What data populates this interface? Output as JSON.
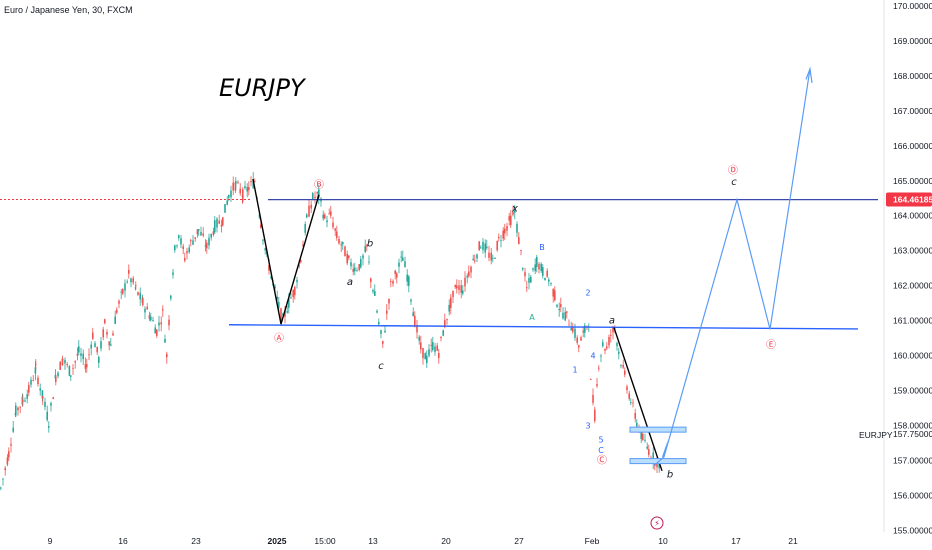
{
  "header": {
    "legend": "Euro / Japanese Yen, 30, FXCM"
  },
  "chart_data": {
    "type": "candlestick",
    "title": "EURJPY",
    "symbol_label": "EURJPY",
    "ylim": [
      155.0,
      170.0
    ],
    "y_ticks": [
      "155.00000",
      "156.00000",
      "157.00000",
      "158.00000",
      "159.00000",
      "160.00000",
      "161.00000",
      "162.00000",
      "163.00000",
      "164.00000",
      "165.00000",
      "166.00000",
      "167.00000",
      "168.00000",
      "169.00000",
      "170.00000"
    ],
    "x_ticks": [
      "9",
      "16",
      "23",
      "2025",
      "15:00",
      "13",
      "20",
      "27",
      "Feb",
      "10",
      "17",
      "21"
    ],
    "last_price": "164.46185",
    "extra_price_label": "157.75000",
    "price_path": [
      [
        0,
        156.2
      ],
      [
        8,
        157.2
      ],
      [
        15,
        158.4
      ],
      [
        22,
        158.7
      ],
      [
        28,
        159.0
      ],
      [
        35,
        159.6
      ],
      [
        42,
        158.8
      ],
      [
        48,
        158.1
      ],
      [
        55,
        159.4
      ],
      [
        62,
        159.9
      ],
      [
        70,
        159.5
      ],
      [
        78,
        160.1
      ],
      [
        86,
        159.7
      ],
      [
        92,
        160.6
      ],
      [
        98,
        159.9
      ],
      [
        104,
        160.9
      ],
      [
        110,
        160.3
      ],
      [
        116,
        161.3
      ],
      [
        122,
        161.8
      ],
      [
        128,
        162.3
      ],
      [
        135,
        161.9
      ],
      [
        142,
        161.5
      ],
      [
        150,
        161.1
      ],
      [
        156,
        160.7
      ],
      [
        162,
        161.2
      ],
      [
        166,
        160.0
      ],
      [
        170,
        161.8
      ],
      [
        174,
        163.0
      ],
      [
        178,
        163.5
      ],
      [
        184,
        162.8
      ],
      [
        190,
        163.2
      ],
      [
        198,
        163.6
      ],
      [
        206,
        163.1
      ],
      [
        214,
        163.7
      ],
      [
        222,
        163.9
      ],
      [
        228,
        164.6
      ],
      [
        235,
        164.9
      ],
      [
        242,
        164.6
      ],
      [
        248,
        164.8
      ],
      [
        254,
        165.0
      ],
      [
        260,
        163.8
      ],
      [
        266,
        162.8
      ],
      [
        272,
        162.1
      ],
      [
        278,
        161.4
      ],
      [
        282,
        161.0
      ],
      [
        288,
        161.5
      ],
      [
        294,
        161.9
      ],
      [
        300,
        162.8
      ],
      [
        306,
        163.9
      ],
      [
        312,
        164.5
      ],
      [
        318,
        164.6
      ],
      [
        324,
        163.9
      ],
      [
        330,
        164.0
      ],
      [
        336,
        163.4
      ],
      [
        342,
        163.1
      ],
      [
        348,
        162.7
      ],
      [
        354,
        162.5
      ],
      [
        360,
        162.6
      ],
      [
        366,
        163.1
      ],
      [
        370,
        162.2
      ],
      [
        374,
        161.7
      ],
      [
        378,
        160.9
      ],
      [
        382,
        160.3
      ],
      [
        386,
        161.2
      ],
      [
        390,
        162.0
      ],
      [
        396,
        162.4
      ],
      [
        402,
        162.8
      ],
      [
        408,
        162.1
      ],
      [
        414,
        161.0
      ],
      [
        420,
        160.2
      ],
      [
        426,
        159.9
      ],
      [
        432,
        160.3
      ],
      [
        438,
        160.1
      ],
      [
        444,
        160.9
      ],
      [
        450,
        161.5
      ],
      [
        456,
        162.0
      ],
      [
        462,
        161.9
      ],
      [
        468,
        162.4
      ],
      [
        474,
        162.8
      ],
      [
        480,
        163.2
      ],
      [
        486,
        163.0
      ],
      [
        492,
        162.7
      ],
      [
        498,
        163.3
      ],
      [
        504,
        163.6
      ],
      [
        510,
        163.9
      ],
      [
        514,
        164.1
      ],
      [
        518,
        163.3
      ],
      [
        522,
        162.6
      ],
      [
        526,
        161.9
      ],
      [
        530,
        162.2
      ],
      [
        536,
        162.7
      ],
      [
        542,
        162.4
      ],
      [
        548,
        162.2
      ],
      [
        554,
        161.7
      ],
      [
        560,
        161.3
      ],
      [
        566,
        161.1
      ],
      [
        572,
        160.8
      ],
      [
        578,
        160.3
      ],
      [
        584,
        160.7
      ],
      [
        588,
        161.0
      ],
      [
        590,
        159.2
      ],
      [
        594,
        158.3
      ],
      [
        598,
        159.8
      ],
      [
        602,
        160.3
      ],
      [
        606,
        160.2
      ],
      [
        610,
        160.6
      ],
      [
        614,
        160.8
      ],
      [
        618,
        160.1
      ],
      [
        624,
        159.4
      ],
      [
        630,
        158.7
      ],
      [
        636,
        158.1
      ],
      [
        642,
        157.6
      ],
      [
        648,
        157.3
      ],
      [
        654,
        157.0
      ],
      [
        660,
        156.9
      ]
    ],
    "annotations": [
      {
        "text": "Ⓐ",
        "x": "2025",
        "y": 160.48,
        "circled": true,
        "color": "#f23645"
      },
      {
        "text": "Ⓑ",
        "x": "15:00",
        "y": 164.88,
        "circled": true,
        "color": "#f23645"
      },
      {
        "text": "a",
        "x": "15:00",
        "y": 162.1,
        "color": "#131722"
      },
      {
        "text": "b",
        "x": "13",
        "y": 163.2,
        "color": "#131722"
      },
      {
        "text": "c",
        "x": "13",
        "y": 159.7,
        "color": "#131722"
      },
      {
        "text": "x",
        "x": "27",
        "y": 164.2,
        "color": "#131722"
      },
      {
        "text": "B",
        "x": "27",
        "y": 163.1,
        "color": "#2962ff"
      },
      {
        "text": "A",
        "x": "27",
        "y": 161.1,
        "color": "#22ab94"
      },
      {
        "text": "2",
        "x": "Feb",
        "y": 161.8,
        "color": "#2962ff"
      },
      {
        "text": "a",
        "x": "Feb",
        "y": 161.0,
        "color": "#131722"
      },
      {
        "text": "4",
        "x": "Feb",
        "y": 160.0,
        "color": "#2962ff"
      },
      {
        "text": "1",
        "x": "Feb",
        "y": 159.6,
        "color": "#2962ff"
      },
      {
        "text": "3",
        "x": "Feb",
        "y": 158.0,
        "color": "#2962ff"
      },
      {
        "text": "5",
        "x": "Feb",
        "y": 157.6,
        "color": "#2962ff"
      },
      {
        "text": "C",
        "x": "Feb",
        "y": 157.3,
        "color": "#2962ff"
      },
      {
        "text": "Ⓒ",
        "x": "Feb",
        "y": 157.0,
        "circled": true,
        "color": "#f23645"
      },
      {
        "text": "b",
        "x": "10",
        "y": 156.6,
        "color": "#131722"
      },
      {
        "text": "Ⓓ",
        "x": "17",
        "y": 165.3,
        "circled": true,
        "color": "#f23645"
      },
      {
        "text": "c",
        "x": "17",
        "y": 164.97,
        "color": "#131722"
      },
      {
        "text": "Ⓔ",
        "x": "21",
        "y": 160.3,
        "circled": true,
        "color": "#f23645"
      }
    ],
    "colors": {
      "up": "#26a69a",
      "down": "#ef5350",
      "level_line": "#2962ff",
      "projection": "#5b9cf6",
      "last_price_bg": "#f23645"
    }
  }
}
